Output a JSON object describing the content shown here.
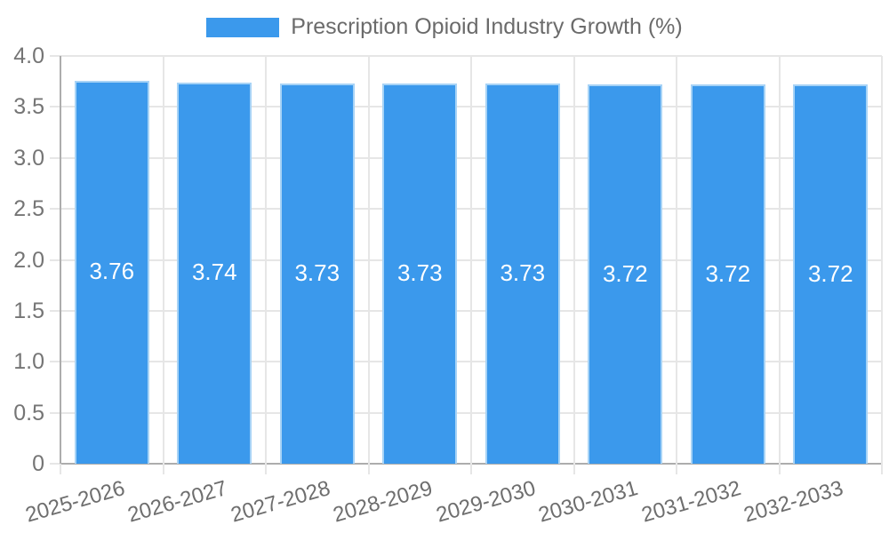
{
  "chart_data": {
    "type": "bar",
    "title": "Prescription Opioid Industry Growth (%)",
    "legend": {
      "label": "Prescription Opioid Industry Growth (%)",
      "position": "top"
    },
    "categories": [
      "2025-2026",
      "2026-2027",
      "2027-2028",
      "2028-2029",
      "2029-2030",
      "2030-2031",
      "2031-2032",
      "2032-2033"
    ],
    "values": [
      3.76,
      3.74,
      3.73,
      3.73,
      3.73,
      3.72,
      3.72,
      3.72
    ],
    "value_labels": [
      "3.76",
      "3.74",
      "3.73",
      "3.73",
      "3.73",
      "3.72",
      "3.72",
      "3.72"
    ],
    "xlabel": "",
    "ylabel": "",
    "ylim": [
      0,
      4
    ],
    "ytick_step": 0.5,
    "ytick_labels": [
      "0",
      "0.5",
      "1.0",
      "1.5",
      "2.0",
      "2.5",
      "3.0",
      "3.5",
      "4.0"
    ],
    "grid": true,
    "colors": {
      "bar": "#3B99EC",
      "bar_border": "#A7D3F6",
      "value_label": "#FFFFFF",
      "gridline": "#E6E6E6",
      "axis_line": "#ADADAD",
      "y_tick_label": "#757575",
      "x_tick_label": "#6E6E6E",
      "title_text": "#6B6B6B"
    }
  }
}
